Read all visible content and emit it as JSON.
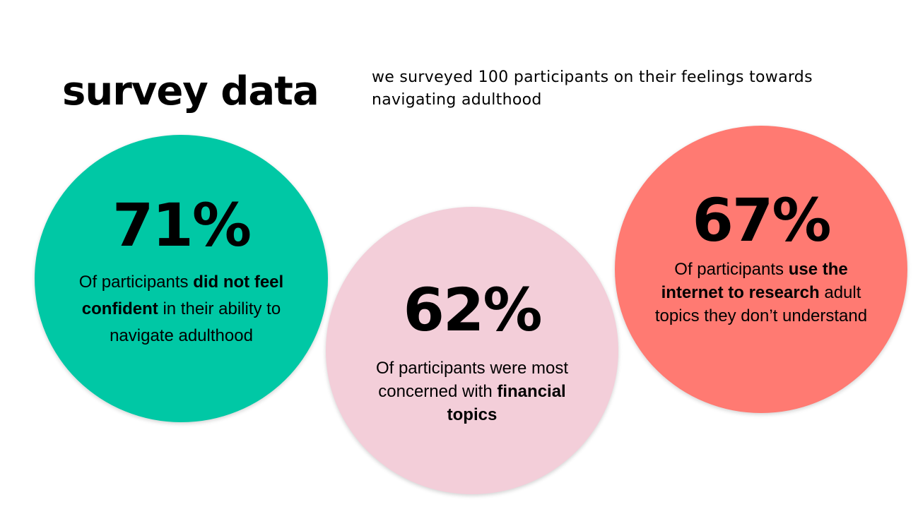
{
  "title": "survey data",
  "subtitle": "we surveyed 100 participants on their feelings towards navigating adulthood",
  "colors": {
    "teal": "#00c8a5",
    "pink": "#f3ced9",
    "coral": "#ff7a72"
  },
  "stats": [
    {
      "value": "71%",
      "text_1": "Of participants ",
      "bold_1": "did not feel confident",
      "text_2": " in their ability to navigate adulthood"
    },
    {
      "value": "62%",
      "text_1": "Of participants were most concerned with ",
      "bold_1": "financial topics"
    },
    {
      "value": "67%",
      "text_1": "Of participants ",
      "bold_1": "use the internet to research",
      "text_2": " adult topics they don’t understand"
    }
  ]
}
